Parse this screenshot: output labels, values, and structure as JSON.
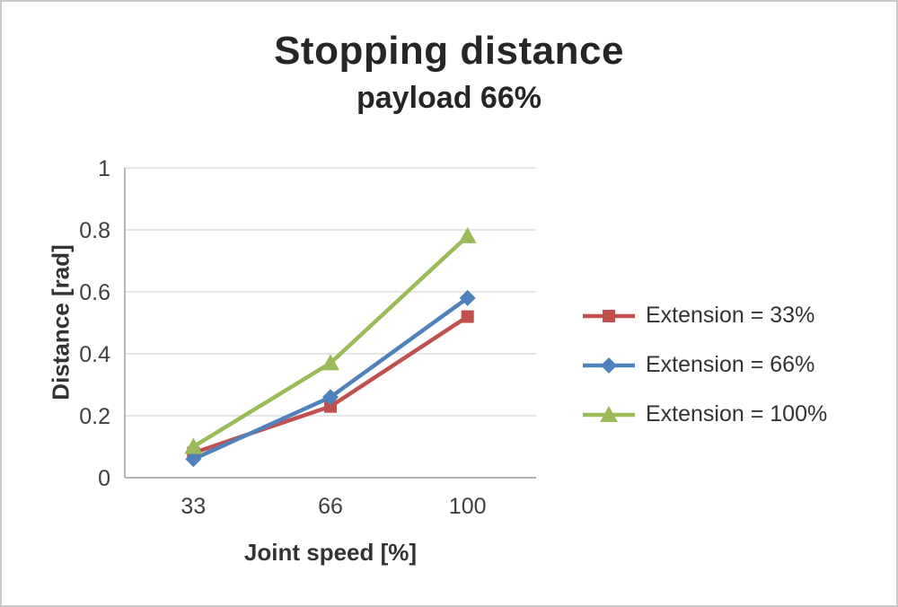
{
  "frame": {
    "background": "#ffffff",
    "border_color": "#c9c9c9"
  },
  "chart_data": {
    "type": "line",
    "title": "Stopping distance",
    "subtitle": "payload 66%",
    "xlabel": "Joint speed [%]",
    "ylabel": "Distance [rad]",
    "categories": [
      "33",
      "66",
      "100"
    ],
    "ylim": [
      0,
      1
    ],
    "ytick_interval": 0.2,
    "yticks": [
      "0",
      "0.2",
      "0.4",
      "0.6",
      "0.8",
      "1"
    ],
    "grid": true,
    "gridline_color": "#d6d6d6",
    "axis_color": "#9e9e9e",
    "legend_position": "right",
    "series": [
      {
        "name": "Extension = 33%",
        "marker": "square",
        "color": "#c0504d",
        "values": [
          0.08,
          0.23,
          0.52
        ]
      },
      {
        "name": "Extension = 66%",
        "marker": "diamond",
        "color": "#4f81bd",
        "values": [
          0.06,
          0.26,
          0.58
        ]
      },
      {
        "name": "Extension = 100%",
        "marker": "triangle",
        "color": "#9bbb59",
        "values": [
          0.1,
          0.37,
          0.78
        ]
      }
    ]
  }
}
